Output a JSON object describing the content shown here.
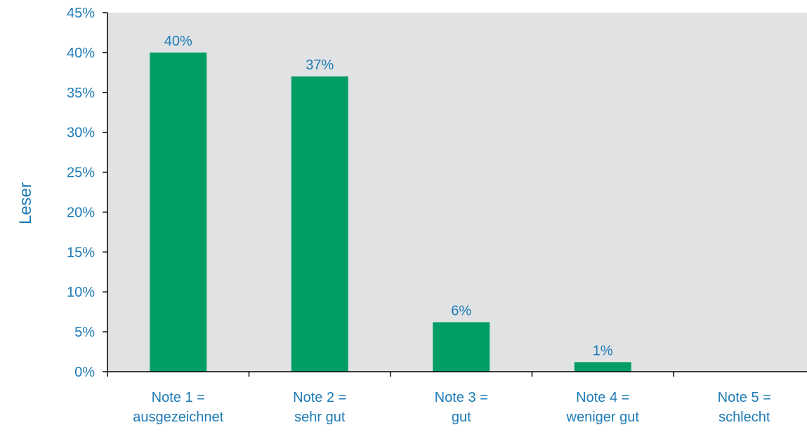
{
  "chart_data": {
    "type": "bar",
    "title": "",
    "xlabel": "",
    "ylabel": "Leser",
    "ylim": [
      0,
      45
    ],
    "yticks": [
      0,
      5,
      10,
      15,
      20,
      25,
      30,
      35,
      40,
      45
    ],
    "ytick_suffix": "%",
    "grid": false,
    "categories": [
      [
        "Note 1 =",
        "ausgezeichnet"
      ],
      [
        "Note 2 =",
        "sehr gut"
      ],
      [
        "Note 3 =",
        "gut"
      ],
      [
        "Note 4 =",
        "weniger gut"
      ],
      [
        "Note 5 =",
        "schlecht"
      ]
    ],
    "values": [
      40,
      37,
      6.2,
      1.2,
      0
    ],
    "data_labels": [
      "40%",
      "37%",
      "6%",
      "1%",
      ""
    ]
  },
  "colors": {
    "plot_background": "#e1e2e4",
    "bar": "#009e64",
    "text": "#1f7bb6",
    "axis": "#000000"
  }
}
